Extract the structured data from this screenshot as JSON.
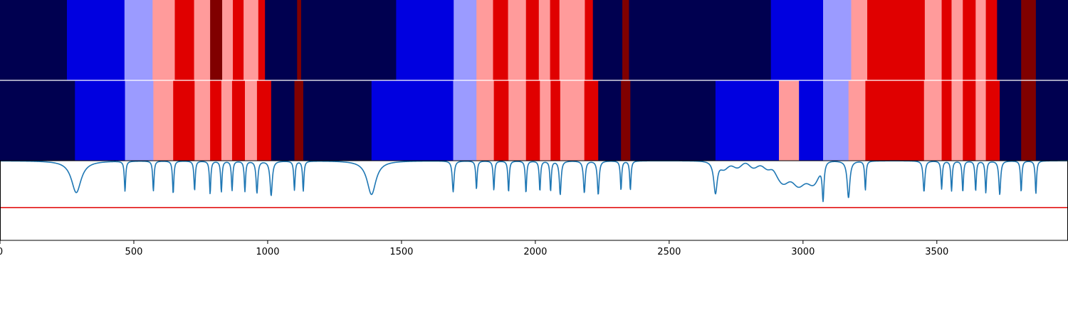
{
  "chart_data": {
    "type": "heatmap",
    "title": "",
    "xlabel": "",
    "ylabel": "",
    "xlim": [
      0,
      3990
    ],
    "ticks": [
      "0",
      "500",
      "1000",
      "1500",
      "2000",
      "2500",
      "3000",
      "3500"
    ],
    "tick_values": [
      0,
      500,
      1000,
      1500,
      2000,
      2500,
      3000,
      3500
    ],
    "colors": {
      "navy": "#000050",
      "blue": "#0000e0",
      "lightblue": "#9b9bff",
      "pink": "#ff9b9b",
      "red": "#e00000",
      "darkred": "#800000",
      "line": "#1f77b4",
      "threshold": "#e00000"
    },
    "rows": [
      {
        "segments": [
          {
            "start": 0,
            "end": 250,
            "color": "navy"
          },
          {
            "start": 250,
            "end": 465,
            "color": "blue"
          },
          {
            "start": 465,
            "end": 570,
            "color": "lightblue"
          },
          {
            "start": 570,
            "end": 653,
            "color": "pink"
          },
          {
            "start": 653,
            "end": 725,
            "color": "red"
          },
          {
            "start": 725,
            "end": 785,
            "color": "pink"
          },
          {
            "start": 785,
            "end": 830,
            "color": "darkred"
          },
          {
            "start": 830,
            "end": 870,
            "color": "pink"
          },
          {
            "start": 870,
            "end": 910,
            "color": "red"
          },
          {
            "start": 910,
            "end": 965,
            "color": "pink"
          },
          {
            "start": 965,
            "end": 990,
            "color": "red"
          },
          {
            "start": 990,
            "end": 1110,
            "color": "navy"
          },
          {
            "start": 1110,
            "end": 1125,
            "color": "darkred"
          },
          {
            "start": 1125,
            "end": 1480,
            "color": "navy"
          },
          {
            "start": 1480,
            "end": 1695,
            "color": "blue"
          },
          {
            "start": 1695,
            "end": 1780,
            "color": "lightblue"
          },
          {
            "start": 1780,
            "end": 1842,
            "color": "pink"
          },
          {
            "start": 1842,
            "end": 1898,
            "color": "red"
          },
          {
            "start": 1898,
            "end": 1965,
            "color": "pink"
          },
          {
            "start": 1965,
            "end": 2013,
            "color": "red"
          },
          {
            "start": 2013,
            "end": 2055,
            "color": "pink"
          },
          {
            "start": 2055,
            "end": 2090,
            "color": "red"
          },
          {
            "start": 2090,
            "end": 2185,
            "color": "pink"
          },
          {
            "start": 2185,
            "end": 2215,
            "color": "red"
          },
          {
            "start": 2215,
            "end": 2325,
            "color": "navy"
          },
          {
            "start": 2325,
            "end": 2350,
            "color": "darkred"
          },
          {
            "start": 2350,
            "end": 2880,
            "color": "navy"
          },
          {
            "start": 2880,
            "end": 3075,
            "color": "blue"
          },
          {
            "start": 3075,
            "end": 3180,
            "color": "lightblue"
          },
          {
            "start": 3180,
            "end": 3240,
            "color": "pink"
          },
          {
            "start": 3240,
            "end": 3455,
            "color": "red"
          },
          {
            "start": 3455,
            "end": 3518,
            "color": "pink"
          },
          {
            "start": 3518,
            "end": 3555,
            "color": "red"
          },
          {
            "start": 3555,
            "end": 3597,
            "color": "pink"
          },
          {
            "start": 3597,
            "end": 3645,
            "color": "red"
          },
          {
            "start": 3645,
            "end": 3683,
            "color": "pink"
          },
          {
            "start": 3683,
            "end": 3725,
            "color": "red"
          },
          {
            "start": 3725,
            "end": 3815,
            "color": "navy"
          },
          {
            "start": 3815,
            "end": 3870,
            "color": "darkred"
          },
          {
            "start": 3870,
            "end": 3990,
            "color": "navy"
          }
        ]
      },
      {
        "segments": [
          {
            "start": 0,
            "end": 280,
            "color": "navy"
          },
          {
            "start": 280,
            "end": 467,
            "color": "blue"
          },
          {
            "start": 467,
            "end": 573,
            "color": "lightblue"
          },
          {
            "start": 573,
            "end": 647,
            "color": "pink"
          },
          {
            "start": 647,
            "end": 727,
            "color": "red"
          },
          {
            "start": 727,
            "end": 785,
            "color": "pink"
          },
          {
            "start": 785,
            "end": 827,
            "color": "red"
          },
          {
            "start": 827,
            "end": 867,
            "color": "pink"
          },
          {
            "start": 867,
            "end": 915,
            "color": "red"
          },
          {
            "start": 915,
            "end": 960,
            "color": "pink"
          },
          {
            "start": 960,
            "end": 1013,
            "color": "red"
          },
          {
            "start": 1013,
            "end": 1100,
            "color": "navy"
          },
          {
            "start": 1100,
            "end": 1133,
            "color": "darkred"
          },
          {
            "start": 1133,
            "end": 1388,
            "color": "navy"
          },
          {
            "start": 1388,
            "end": 1693,
            "color": "blue"
          },
          {
            "start": 1693,
            "end": 1780,
            "color": "lightblue"
          },
          {
            "start": 1780,
            "end": 1845,
            "color": "pink"
          },
          {
            "start": 1845,
            "end": 1900,
            "color": "red"
          },
          {
            "start": 1900,
            "end": 1965,
            "color": "pink"
          },
          {
            "start": 1965,
            "end": 2017,
            "color": "red"
          },
          {
            "start": 2017,
            "end": 2057,
            "color": "pink"
          },
          {
            "start": 2057,
            "end": 2093,
            "color": "red"
          },
          {
            "start": 2093,
            "end": 2183,
            "color": "pink"
          },
          {
            "start": 2183,
            "end": 2235,
            "color": "red"
          },
          {
            "start": 2235,
            "end": 2320,
            "color": "navy"
          },
          {
            "start": 2320,
            "end": 2355,
            "color": "darkred"
          },
          {
            "start": 2355,
            "end": 2673,
            "color": "navy"
          },
          {
            "start": 2673,
            "end": 2910,
            "color": "blue"
          },
          {
            "start": 2910,
            "end": 2985,
            "color": "pink"
          },
          {
            "start": 2985,
            "end": 3075,
            "color": "blue"
          },
          {
            "start": 3075,
            "end": 3170,
            "color": "lightblue"
          },
          {
            "start": 3170,
            "end": 3233,
            "color": "pink"
          },
          {
            "start": 3233,
            "end": 3452,
            "color": "red"
          },
          {
            "start": 3452,
            "end": 3518,
            "color": "pink"
          },
          {
            "start": 3518,
            "end": 3555,
            "color": "red"
          },
          {
            "start": 3555,
            "end": 3597,
            "color": "pink"
          },
          {
            "start": 3597,
            "end": 3645,
            "color": "red"
          },
          {
            "start": 3645,
            "end": 3683,
            "color": "pink"
          },
          {
            "start": 3683,
            "end": 3735,
            "color": "red"
          },
          {
            "start": 3735,
            "end": 3815,
            "color": "navy"
          },
          {
            "start": 3815,
            "end": 3870,
            "color": "darkred"
          },
          {
            "start": 3870,
            "end": 3990,
            "color": "navy"
          }
        ]
      }
    ],
    "spectrum": {
      "ylim": [
        -0.17,
        0.0
      ],
      "threshold": -0.1,
      "baseline": 0.0,
      "dips": [
        {
          "x": 285,
          "depth": -0.068,
          "width": 22
        },
        {
          "x": 467,
          "depth": -0.064,
          "width": 3
        },
        {
          "x": 573,
          "depth": -0.064,
          "width": 3
        },
        {
          "x": 647,
          "depth": -0.07,
          "width": 3
        },
        {
          "x": 727,
          "depth": -0.063,
          "width": 3
        },
        {
          "x": 785,
          "depth": -0.07,
          "width": 3
        },
        {
          "x": 827,
          "depth": -0.066,
          "width": 3
        },
        {
          "x": 867,
          "depth": -0.063,
          "width": 3
        },
        {
          "x": 915,
          "depth": -0.065,
          "width": 3
        },
        {
          "x": 960,
          "depth": -0.068,
          "width": 4
        },
        {
          "x": 1013,
          "depth": -0.074,
          "width": 5
        },
        {
          "x": 1100,
          "depth": -0.062,
          "width": 3
        },
        {
          "x": 1133,
          "depth": -0.064,
          "width": 3
        },
        {
          "x": 1388,
          "depth": -0.072,
          "width": 20
        },
        {
          "x": 1693,
          "depth": -0.066,
          "width": 4
        },
        {
          "x": 1780,
          "depth": -0.06,
          "width": 3
        },
        {
          "x": 1845,
          "depth": -0.062,
          "width": 3
        },
        {
          "x": 1900,
          "depth": -0.066,
          "width": 3
        },
        {
          "x": 1965,
          "depth": -0.068,
          "width": 3
        },
        {
          "x": 2017,
          "depth": -0.064,
          "width": 3
        },
        {
          "x": 2057,
          "depth": -0.064,
          "width": 3
        },
        {
          "x": 2093,
          "depth": -0.072,
          "width": 4
        },
        {
          "x": 2183,
          "depth": -0.068,
          "width": 4
        },
        {
          "x": 2235,
          "depth": -0.072,
          "width": 4
        },
        {
          "x": 2320,
          "depth": -0.062,
          "width": 3
        },
        {
          "x": 2355,
          "depth": -0.062,
          "width": 3
        },
        {
          "x": 2673,
          "depth": -0.07,
          "width": 8
        },
        {
          "x": 3075,
          "depth": -0.077,
          "width": 4
        },
        {
          "x": 3170,
          "depth": -0.079,
          "width": 6
        },
        {
          "x": 3233,
          "depth": -0.062,
          "width": 3
        },
        {
          "x": 3452,
          "depth": -0.066,
          "width": 4
        },
        {
          "x": 3518,
          "depth": -0.06,
          "width": 3
        },
        {
          "x": 3555,
          "depth": -0.064,
          "width": 3
        },
        {
          "x": 3597,
          "depth": -0.066,
          "width": 3
        },
        {
          "x": 3645,
          "depth": -0.064,
          "width": 3
        },
        {
          "x": 3683,
          "depth": -0.068,
          "width": 3
        },
        {
          "x": 3735,
          "depth": -0.072,
          "width": 4
        },
        {
          "x": 3815,
          "depth": -0.066,
          "width": 3
        },
        {
          "x": 3870,
          "depth": -0.07,
          "width": 3
        }
      ],
      "broad_bands": [
        {
          "start": 2690,
          "end": 2890,
          "level": -0.012
        },
        {
          "start": 2895,
          "end": 3065,
          "level": -0.05
        }
      ]
    }
  }
}
